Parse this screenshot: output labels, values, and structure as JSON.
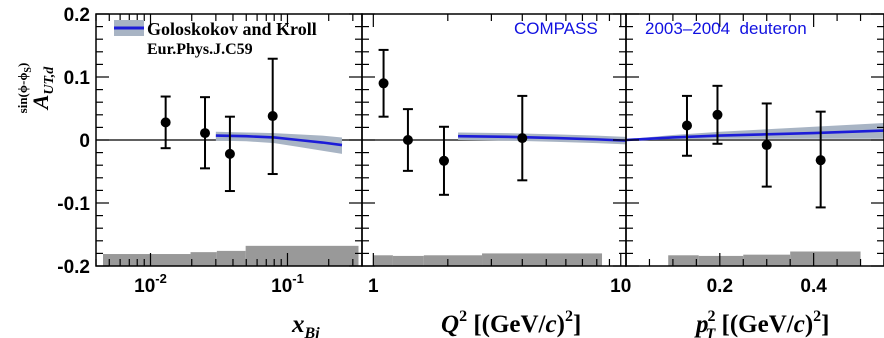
{
  "chart_data": {
    "type": "scatter",
    "title": "",
    "ylabel": {
      "main": "A",
      "sub": "UT,d",
      "sup": "sin(ϕ-ϕ",
      "sup_sub": "S",
      "sup_close": ")"
    },
    "ylim": [
      -0.2,
      0.2
    ],
    "y_ticks": [
      "0.2",
      "0.1",
      "0",
      "-0.1",
      "-0.2"
    ],
    "y_tick_values": [
      0.2,
      0.1,
      0,
      -0.1,
      -0.2
    ],
    "legend": {
      "entry": "Goloskokov and Kroll",
      "reference": "Eur.Phys.J.C59",
      "placement": "top-left"
    },
    "annotations": [
      "COMPASS",
      "2003–2004  deuteron"
    ],
    "colors": {
      "model_line": "#1c1cd8",
      "model_band": "#a8b4c4",
      "systematic": "#999999",
      "points": "#000000",
      "label_blue": "#1010e0"
    },
    "panels": [
      {
        "id": "xbj",
        "xscale": "log",
        "xlim": [
          0.004,
          0.35
        ],
        "xlabel": {
          "main": "x",
          "sub": "Bj"
        },
        "x_ticks": [
          {
            "value": 0.01,
            "base": "10",
            "exp": "-2"
          },
          {
            "value": 0.1,
            "base": "10",
            "exp": "-1"
          }
        ],
        "points": [
          {
            "x": 0.0129,
            "y": 0.028,
            "ylo": -0.013,
            "yhi": 0.069
          },
          {
            "x": 0.025,
            "y": 0.011,
            "ylo": -0.045,
            "yhi": 0.068
          },
          {
            "x": 0.038,
            "y": -0.022,
            "ylo": -0.081,
            "yhi": 0.037
          },
          {
            "x": 0.078,
            "y": 0.038,
            "ylo": -0.054,
            "yhi": 0.129
          }
        ],
        "model": {
          "x": [
            0.03,
            0.05,
            0.08,
            0.12,
            0.18,
            0.25
          ],
          "y": [
            0.007,
            0.006,
            0.004,
            0.0,
            -0.004,
            -0.008
          ],
          "band_lo": [
            -0.001,
            -0.002,
            -0.005,
            -0.011,
            -0.017,
            -0.022
          ],
          "band_hi": [
            0.013,
            0.012,
            0.011,
            0.009,
            0.007,
            0.004
          ]
        },
        "systematics": [
          {
            "x0": 0.0045,
            "x1": 0.0196,
            "h": 0.019
          },
          {
            "x0": 0.0196,
            "x1": 0.0305,
            "h": 0.022
          },
          {
            "x0": 0.0305,
            "x1": 0.0495,
            "h": 0.024
          },
          {
            "x0": 0.0495,
            "x1": 0.33,
            "h": 0.032
          }
        ]
      },
      {
        "id": "q2",
        "xscale": "log",
        "xlim": [
          0.9,
          10.5
        ],
        "xlabel": {
          "main": "Q",
          "sup": "2",
          "units": " [(GeV/",
          "units_c": "c",
          "units_close": ")",
          "units_sup": "2",
          "units_end": "]"
        },
        "x_ticks": [
          {
            "value": 1,
            "label": "1"
          },
          {
            "value": 10,
            "label": "10"
          }
        ],
        "points": [
          {
            "x": 1.1,
            "y": 0.09,
            "ylo": 0.037,
            "yhi": 0.143
          },
          {
            "x": 1.38,
            "y": 0.0,
            "ylo": -0.049,
            "yhi": 0.049
          },
          {
            "x": 1.93,
            "y": -0.033,
            "ylo": -0.087,
            "yhi": 0.021
          },
          {
            "x": 4.0,
            "y": 0.003,
            "ylo": -0.064,
            "yhi": 0.07
          }
        ],
        "model": {
          "x": [
            2.2,
            3.5,
            5.5,
            8.0,
            10.5
          ],
          "y": [
            0.006,
            0.005,
            0.003,
            0.001,
            -0.001
          ],
          "band_lo": [
            0.0,
            -0.001,
            -0.003,
            -0.005,
            -0.007
          ],
          "band_hi": [
            0.012,
            0.011,
            0.009,
            0.007,
            0.005
          ]
        },
        "systematics": [
          {
            "x0": 1.0,
            "x1": 1.2,
            "h": 0.017
          },
          {
            "x0": 1.2,
            "x1": 1.6,
            "h": 0.016
          },
          {
            "x0": 1.6,
            "x1": 2.75,
            "h": 0.017
          },
          {
            "x0": 2.75,
            "x1": 8.4,
            "h": 0.02
          }
        ]
      },
      {
        "id": "pt2",
        "xscale": "linear",
        "xlim": [
          0.0,
          0.55
        ],
        "xlabel": {
          "main": "p",
          "sub": "T",
          "sup": "2",
          "units": " [(GeV/",
          "units_c": "c",
          "units_close": ")",
          "units_sup": "2",
          "units_end": "]"
        },
        "x_ticks": [
          {
            "value": 0.2,
            "label": "0.2"
          },
          {
            "value": 0.4,
            "label": "0.4"
          }
        ],
        "points": [
          {
            "x": 0.13,
            "y": 0.023,
            "ylo": -0.025,
            "yhi": 0.07
          },
          {
            "x": 0.195,
            "y": 0.04,
            "ylo": -0.006,
            "yhi": 0.086
          },
          {
            "x": 0.3,
            "y": -0.008,
            "ylo": -0.074,
            "yhi": 0.058
          },
          {
            "x": 0.415,
            "y": -0.032,
            "ylo": -0.107,
            "yhi": 0.045
          }
        ],
        "model": {
          "x": [
            0.0,
            0.1,
            0.2,
            0.3,
            0.4,
            0.55
          ],
          "y": [
            0.0,
            0.004,
            0.007,
            0.009,
            0.011,
            0.015
          ],
          "band_lo": [
            -0.001,
            0.001,
            0.002,
            0.002,
            0.002,
            0.002
          ],
          "band_hi": [
            0.001,
            0.008,
            0.013,
            0.017,
            0.021,
            0.027
          ]
        },
        "systematics": [
          {
            "x0": 0.09,
            "x1": 0.155,
            "h": 0.017
          },
          {
            "x0": 0.155,
            "x1": 0.25,
            "h": 0.016
          },
          {
            "x0": 0.25,
            "x1": 0.35,
            "h": 0.018
          },
          {
            "x0": 0.35,
            "x1": 0.5,
            "h": 0.023
          }
        ]
      }
    ]
  }
}
